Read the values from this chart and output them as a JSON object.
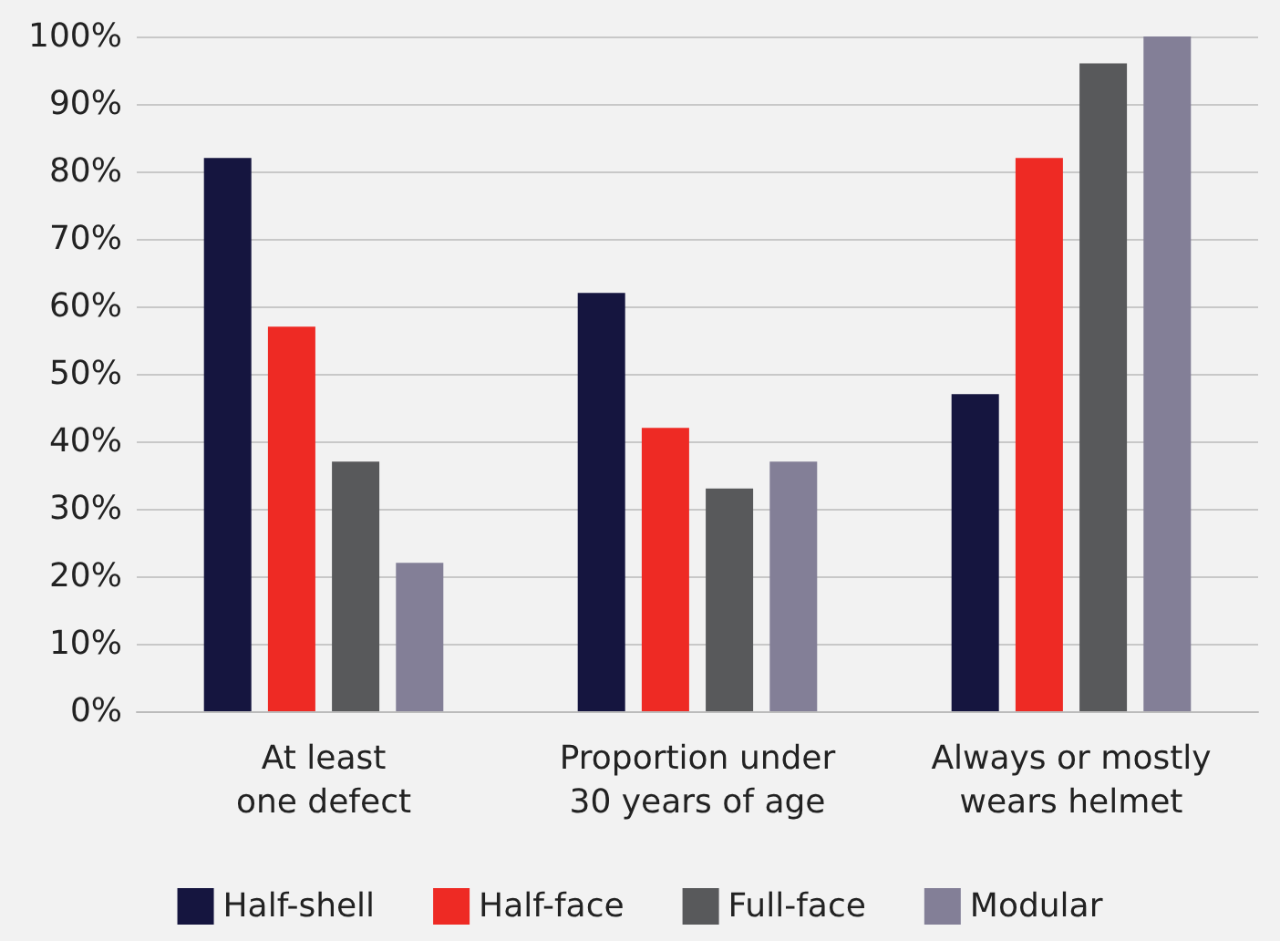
{
  "chart_data": {
    "type": "bar",
    "categories": [
      "At least\none defect",
      "Proportion under\n30 years of age",
      "Always or mostly\nwears helmet"
    ],
    "series": [
      {
        "name": "Half-shell",
        "color": "#15153f",
        "values": [
          82,
          62,
          47
        ]
      },
      {
        "name": "Half-face",
        "color": "#ee2a24",
        "values": [
          57,
          42,
          82
        ]
      },
      {
        "name": "Full-face",
        "color": "#58595b",
        "values": [
          37,
          33,
          96
        ]
      },
      {
        "name": "Modular",
        "color": "#837f97",
        "values": [
          22,
          37,
          100
        ]
      }
    ],
    "ylim": [
      0,
      100
    ],
    "yticks": [
      {
        "value": 0,
        "label": "0%"
      },
      {
        "value": 10,
        "label": "10%"
      },
      {
        "value": 20,
        "label": "20%"
      },
      {
        "value": 30,
        "label": "30%"
      },
      {
        "value": 40,
        "label": "40%"
      },
      {
        "value": 50,
        "label": "50%"
      },
      {
        "value": 60,
        "label": "60%"
      },
      {
        "value": 70,
        "label": "70%"
      },
      {
        "value": 80,
        "label": "80%"
      },
      {
        "value": 90,
        "label": "90%"
      },
      {
        "value": 100,
        "label": "100%"
      }
    ],
    "grid": "y",
    "legend": "bottom"
  }
}
